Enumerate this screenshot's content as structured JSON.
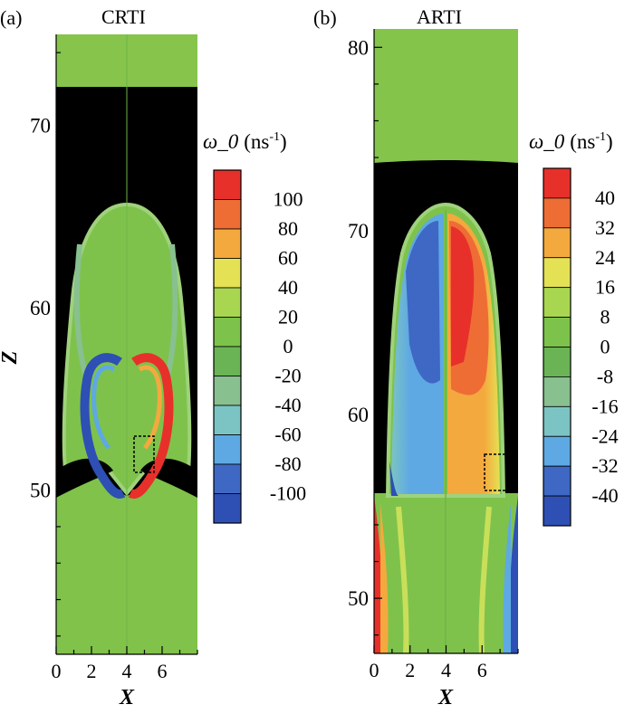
{
  "chart_data": [
    {
      "type": "heatmap",
      "panel_label": "(a)",
      "title": "CRTI",
      "xlabel": "X",
      "ylabel": "Z",
      "xlim": [
        0,
        8
      ],
      "ylim": [
        41,
        75
      ],
      "x_ticks": [
        "0",
        "2",
        "4",
        "6"
      ],
      "y_ticks": [
        "50",
        "60",
        "70"
      ],
      "colorbar": {
        "label": "ω_0",
        "unit": "ns",
        "unit_exponent": "-1",
        "levels": [
          "100",
          "80",
          "60",
          "40",
          "20",
          "0",
          "-20",
          "-40",
          "-60",
          "-80",
          "-100"
        ],
        "colors": [
          "#e8302a",
          "#ee6d35",
          "#f4a93e",
          "#e5e155",
          "#a9d651",
          "#7dc24a",
          "#6ab455",
          "#88c08f",
          "#7cc4c3",
          "#5ea9e3",
          "#3e68c4",
          "#2e4fb4"
        ]
      },
      "annotation": "dotted box near X≈4.8, Z≈51–53"
    },
    {
      "type": "heatmap",
      "panel_label": "(b)",
      "title": "ARTI",
      "xlabel": "X",
      "ylabel": "",
      "xlim": [
        0,
        8
      ],
      "ylim": [
        47,
        81
      ],
      "x_ticks": [
        "0",
        "2",
        "4",
        "6"
      ],
      "y_ticks": [
        "50",
        "60",
        "70",
        "80"
      ],
      "colorbar": {
        "label": "ω_0",
        "unit": "ns",
        "unit_exponent": "-1",
        "levels": [
          "40",
          "32",
          "24",
          "16",
          "8",
          "0",
          "-8",
          "-16",
          "-24",
          "-32",
          "-40"
        ],
        "colors": [
          "#e8302a",
          "#ee6d35",
          "#f4a93e",
          "#e5e155",
          "#a9d651",
          "#7dc24a",
          "#6ab455",
          "#88c08f",
          "#7cc4c3",
          "#5ea9e3",
          "#3e68c4",
          "#2e4fb4"
        ]
      },
      "annotation": "dotted box near X≈7, Z≈56–58"
    }
  ]
}
